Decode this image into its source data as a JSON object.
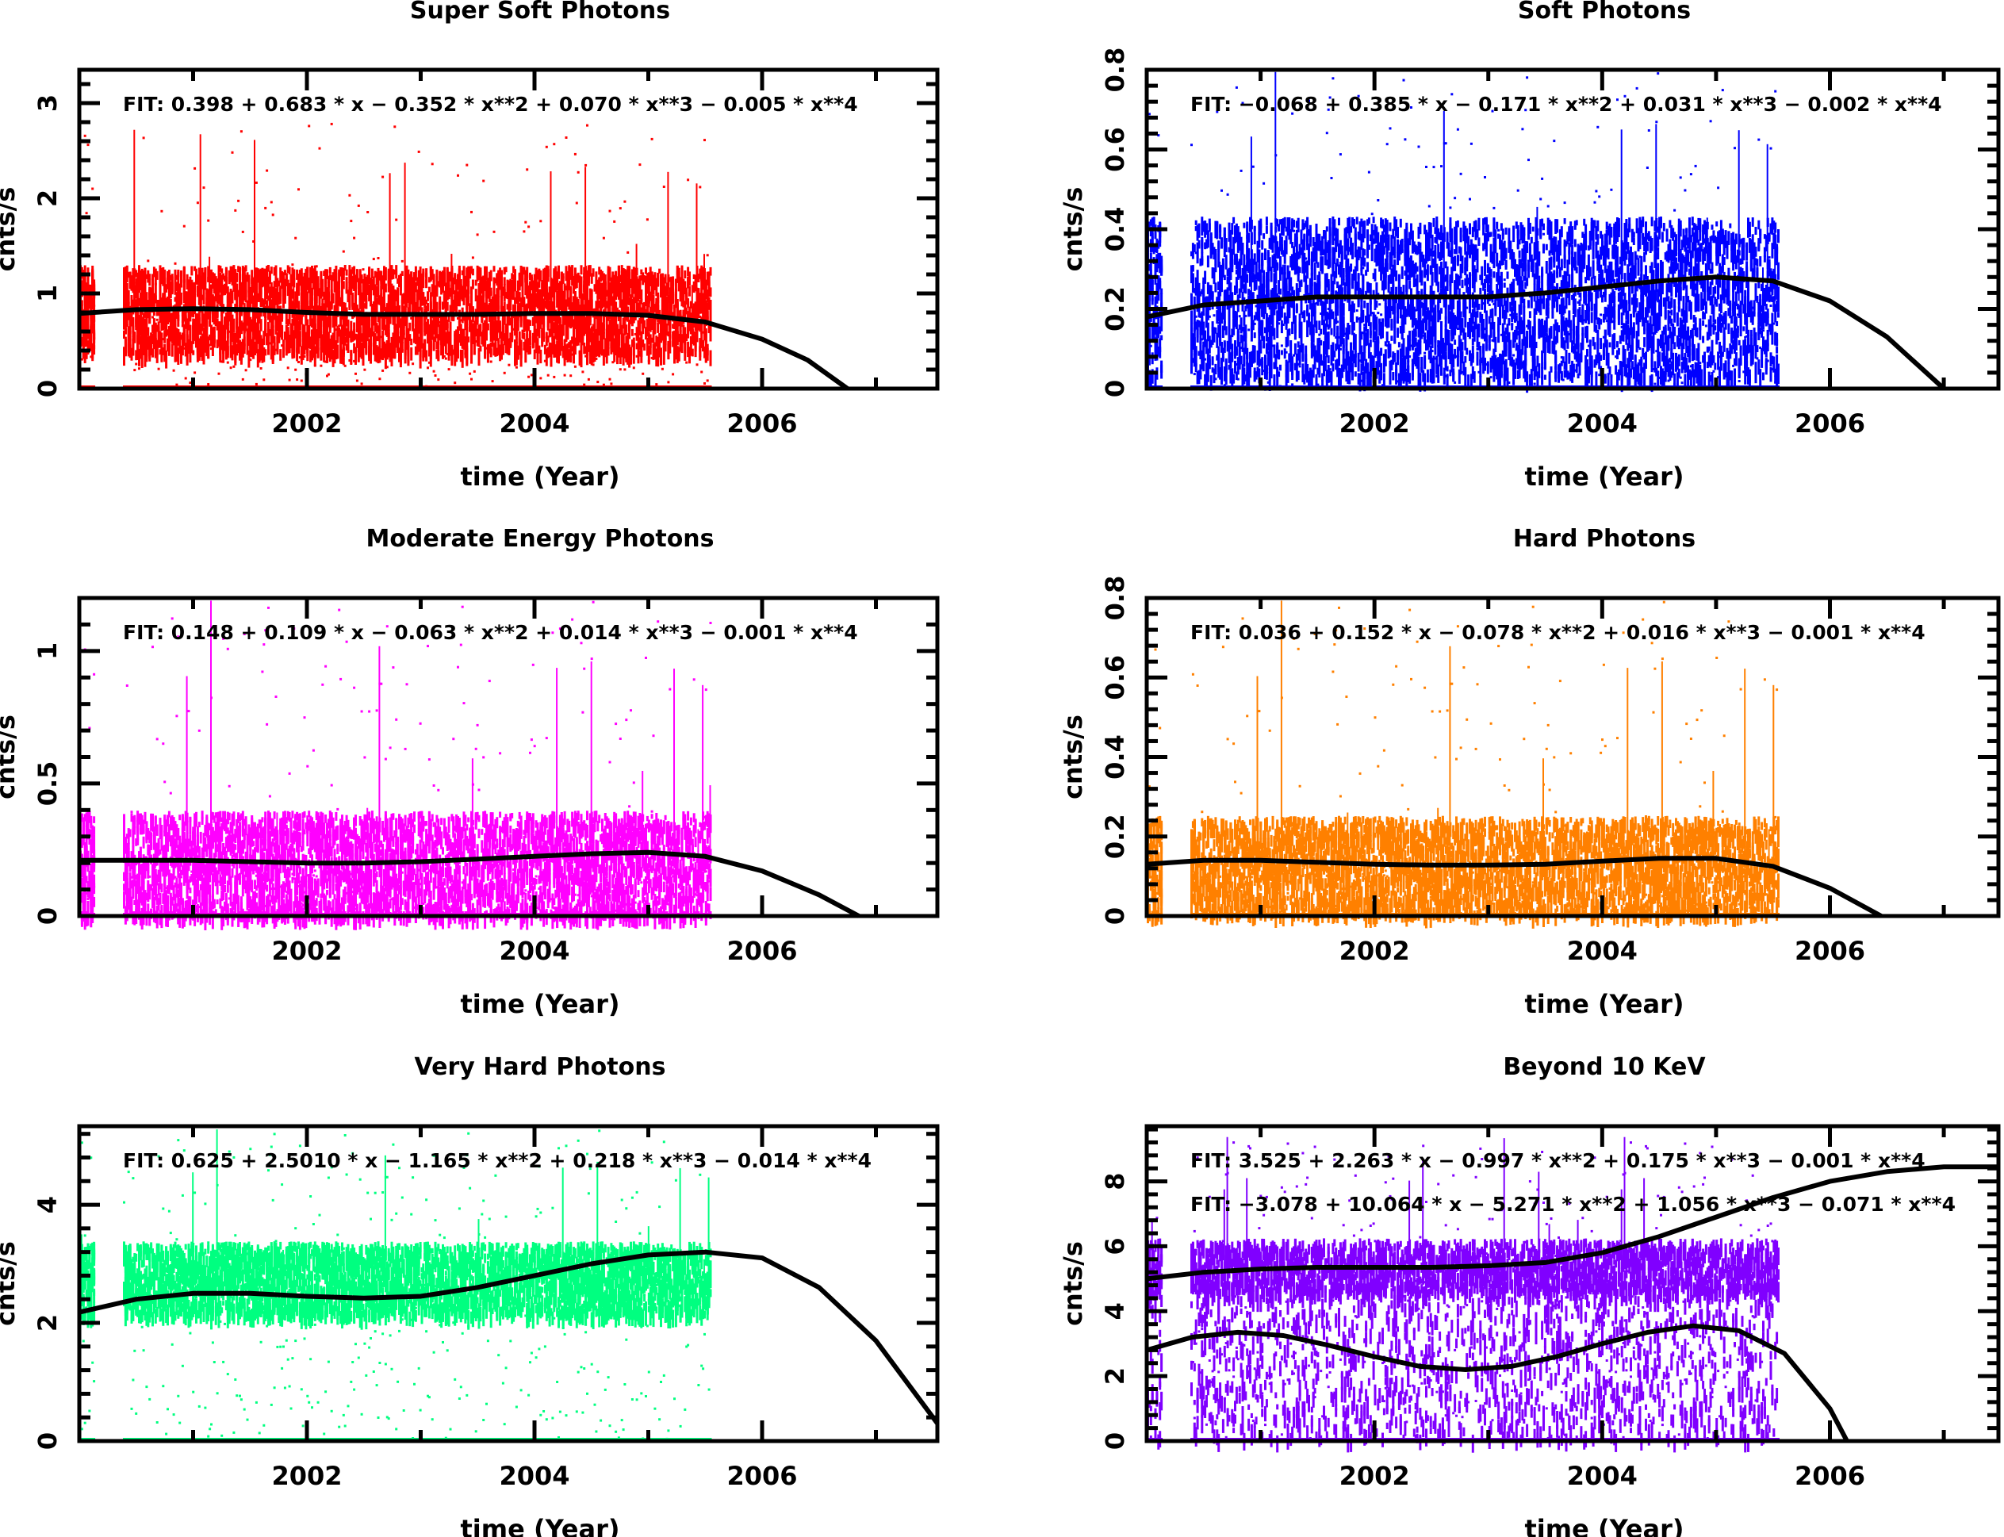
{
  "chart_data": [
    {
      "type": "scatter",
      "title": "Super Soft Photons",
      "xlabel": "time (Year)",
      "ylabel": "cnts/s",
      "xlim": [
        2000.0,
        2007.54
      ],
      "ylim": [
        0,
        3.35
      ],
      "xticks": [
        2002,
        2004,
        2006
      ],
      "xtick_labels": [
        "2002",
        "2004",
        "2006"
      ],
      "yticks": [
        0,
        1,
        2,
        3
      ],
      "ytick_labels": [
        "0",
        "1",
        "2",
        "3"
      ],
      "color": "#FF0000",
      "data_range": [
        2000.0,
        2005.55
      ],
      "band": {
        "center": 0.8,
        "spread": 0.45,
        "spike_max": 2.8
      },
      "fits": [
        {
          "label": "FIT:  0.398 + 0.683 * x − 0.352 * x**2 + 0.070 * x**3 − 0.005 * x**4",
          "curve_x": [
            2000.0,
            2000.5,
            2001.0,
            2001.5,
            2002.0,
            2002.5,
            2003.0,
            2003.5,
            2004.0,
            2004.5,
            2005.0,
            2005.5,
            2006.0,
            2006.4,
            2006.75
          ],
          "curve_y": [
            0.79,
            0.83,
            0.84,
            0.83,
            0.8,
            0.78,
            0.78,
            0.78,
            0.79,
            0.79,
            0.77,
            0.7,
            0.52,
            0.3,
            0.0
          ]
        }
      ]
    },
    {
      "type": "scatter",
      "title": "Soft Photons",
      "xlabel": "time (Year)",
      "ylabel": "cnts/s",
      "xlim": [
        2000.0,
        2007.48
      ],
      "ylim": [
        0,
        0.8
      ],
      "xticks": [
        2002,
        2004,
        2006
      ],
      "xtick_labels": [
        "2002",
        "2004",
        "2006"
      ],
      "yticks": [
        0,
        0.2,
        0.4,
        0.6,
        0.8
      ],
      "ytick_labels": [
        "0",
        "0.2",
        "0.4",
        "0.6",
        "0.8"
      ],
      "color": "#0000FF",
      "data_range": [
        2000.0,
        2005.55
      ],
      "band": {
        "center": 0.22,
        "spread": 0.2,
        "spike_max": 0.8
      },
      "fits": [
        {
          "label": "FIT:  −0.068 + 0.385 * x − 0.171 * x**2 + 0.031 * x**3 − 0.002 * x**4",
          "curve_x": [
            2000.0,
            2000.5,
            2001.0,
            2001.5,
            2002.0,
            2002.5,
            2003.0,
            2003.5,
            2004.0,
            2004.5,
            2005.0,
            2005.5,
            2006.0,
            2006.5,
            2007.0
          ],
          "curve_y": [
            0.18,
            0.21,
            0.22,
            0.23,
            0.23,
            0.23,
            0.23,
            0.24,
            0.255,
            0.27,
            0.28,
            0.27,
            0.22,
            0.13,
            0.0
          ]
        }
      ]
    },
    {
      "type": "scatter",
      "title": "Moderate Energy Photons",
      "xlabel": "time (Year)",
      "ylabel": "cnts/s",
      "xlim": [
        2000.0,
        2007.54
      ],
      "ylim": [
        0,
        1.2
      ],
      "xticks": [
        2002,
        2004,
        2006
      ],
      "xtick_labels": [
        "2002",
        "2004",
        "2006"
      ],
      "yticks": [
        0,
        0.5,
        1
      ],
      "ytick_labels": [
        "0",
        "0.5",
        "1"
      ],
      "color": "#FF00FF",
      "data_range": [
        2000.0,
        2005.55
      ],
      "band": {
        "center": 0.18,
        "spread": 0.2,
        "spike_max": 1.2
      },
      "fits": [
        {
          "label": "FIT:  0.148 + 0.109 * x − 0.063 * x**2 + 0.014 * x**3 − 0.001 * x**4",
          "curve_x": [
            2000.0,
            2000.5,
            2001.0,
            2001.5,
            2002.0,
            2002.5,
            2003.0,
            2003.5,
            2004.0,
            2004.5,
            2005.0,
            2005.5,
            2006.0,
            2006.5,
            2006.85
          ],
          "curve_y": [
            0.21,
            0.21,
            0.21,
            0.205,
            0.2,
            0.2,
            0.205,
            0.215,
            0.225,
            0.235,
            0.24,
            0.225,
            0.17,
            0.08,
            0.0
          ]
        }
      ]
    },
    {
      "type": "scatter",
      "title": "Hard Photons",
      "xlabel": "time (Year)",
      "ylabel": "cnts/s",
      "xlim": [
        2000.0,
        2007.48
      ],
      "ylim": [
        0,
        0.8
      ],
      "xticks": [
        2002,
        2004,
        2006
      ],
      "xtick_labels": [
        "2002",
        "2004",
        "2006"
      ],
      "yticks": [
        0,
        0.2,
        0.4,
        0.6,
        0.8
      ],
      "ytick_labels": [
        "0",
        "0.2",
        "0.4",
        "0.6",
        "0.8"
      ],
      "color": "#FF8000",
      "data_range": [
        2000.0,
        2005.55
      ],
      "band": {
        "center": 0.12,
        "spread": 0.12,
        "spike_max": 0.8
      },
      "fits": [
        {
          "label": "FIT:  0.036 + 0.152 * x − 0.078 * x**2 + 0.016 * x**3 − 0.001 * x**4",
          "curve_x": [
            2000.0,
            2000.5,
            2001.0,
            2001.5,
            2002.0,
            2002.5,
            2003.0,
            2003.5,
            2004.0,
            2004.5,
            2005.0,
            2005.5,
            2006.0,
            2006.45
          ],
          "curve_y": [
            0.13,
            0.14,
            0.14,
            0.135,
            0.13,
            0.128,
            0.128,
            0.13,
            0.138,
            0.145,
            0.145,
            0.125,
            0.07,
            0.0
          ]
        }
      ]
    },
    {
      "type": "scatter",
      "title": "Very Hard  Photons",
      "xlabel": "time (Year)",
      "ylabel": "cnts/s",
      "xlim": [
        2000.0,
        2007.54
      ],
      "ylim": [
        0,
        5.33
      ],
      "xticks": [
        2002,
        2004,
        2006
      ],
      "xtick_labels": [
        "2002",
        "2004",
        "2006"
      ],
      "yticks": [
        0,
        2,
        4
      ],
      "ytick_labels": [
        "0",
        "2",
        "4"
      ],
      "color": "#00FF80",
      "data_range": [
        2000.0,
        2005.55
      ],
      "band": {
        "center": 2.7,
        "spread": 0.6,
        "spike_max": 5.3
      },
      "fits": [
        {
          "label": "FIT:  0.625 + 2.5010 * x − 1.165 * x**2 + 0.218 * x**3 − 0.014 * x**4",
          "curve_x": [
            2000.0,
            2000.5,
            2001.0,
            2001.5,
            2002.0,
            2002.5,
            2003.0,
            2003.5,
            2004.0,
            2004.5,
            2005.0,
            2005.5,
            2006.0,
            2006.5,
            2007.0,
            2007.54
          ],
          "curve_y": [
            2.18,
            2.4,
            2.5,
            2.5,
            2.45,
            2.42,
            2.45,
            2.6,
            2.8,
            3.0,
            3.15,
            3.2,
            3.1,
            2.6,
            1.7,
            0.3
          ]
        }
      ]
    },
    {
      "type": "scatter",
      "title": "Beyond 10 KeV",
      "xlabel": "time (Year)",
      "ylabel": "cnts/s",
      "xlim": [
        2000.0,
        2007.48
      ],
      "ylim": [
        0,
        9.7
      ],
      "xticks": [
        2002,
        2004,
        2006
      ],
      "xtick_labels": [
        "2002",
        "2004",
        "2006"
      ],
      "yticks": [
        0,
        2,
        4,
        6,
        8
      ],
      "ytick_labels": [
        "0",
        "2",
        "4",
        "6",
        "8"
      ],
      "color": "#8000FF",
      "data_range": [
        2000.0,
        2005.55
      ],
      "band": {
        "center": 5.3,
        "spread": 0.8,
        "spike_max": 9.5,
        "second_center": 2.0
      },
      "fits": [
        {
          "label": "FIT:  3.525 + 2.263 * x − 0.997 * x**2 + 0.175 * x**3 − 0.001 * x**4",
          "curve_x": [
            2000.0,
            2000.5,
            2001.0,
            2001.5,
            2002.0,
            2002.5,
            2003.0,
            2003.5,
            2004.0,
            2004.5,
            2005.0,
            2005.5,
            2006.0,
            2006.5,
            2007.0,
            2007.48
          ],
          "curve_y": [
            5.0,
            5.2,
            5.3,
            5.35,
            5.35,
            5.35,
            5.4,
            5.5,
            5.8,
            6.3,
            6.9,
            7.5,
            8.0,
            8.3,
            8.45,
            8.45
          ]
        },
        {
          "label": "FIT:  −3.078 + 10.064 * x − 5.271 * x**2 + 1.056 * x**3 − 0.071 * x**4",
          "curve_x": [
            2000.0,
            2000.4,
            2000.8,
            2001.2,
            2001.6,
            2002.0,
            2002.4,
            2002.8,
            2003.2,
            2003.6,
            2004.0,
            2004.4,
            2004.8,
            2005.2,
            2005.6,
            2006.0,
            2006.15
          ],
          "curve_y": [
            2.8,
            3.2,
            3.35,
            3.25,
            2.95,
            2.6,
            2.3,
            2.2,
            2.3,
            2.6,
            3.0,
            3.35,
            3.55,
            3.4,
            2.7,
            1.0,
            0.0
          ]
        }
      ]
    }
  ]
}
